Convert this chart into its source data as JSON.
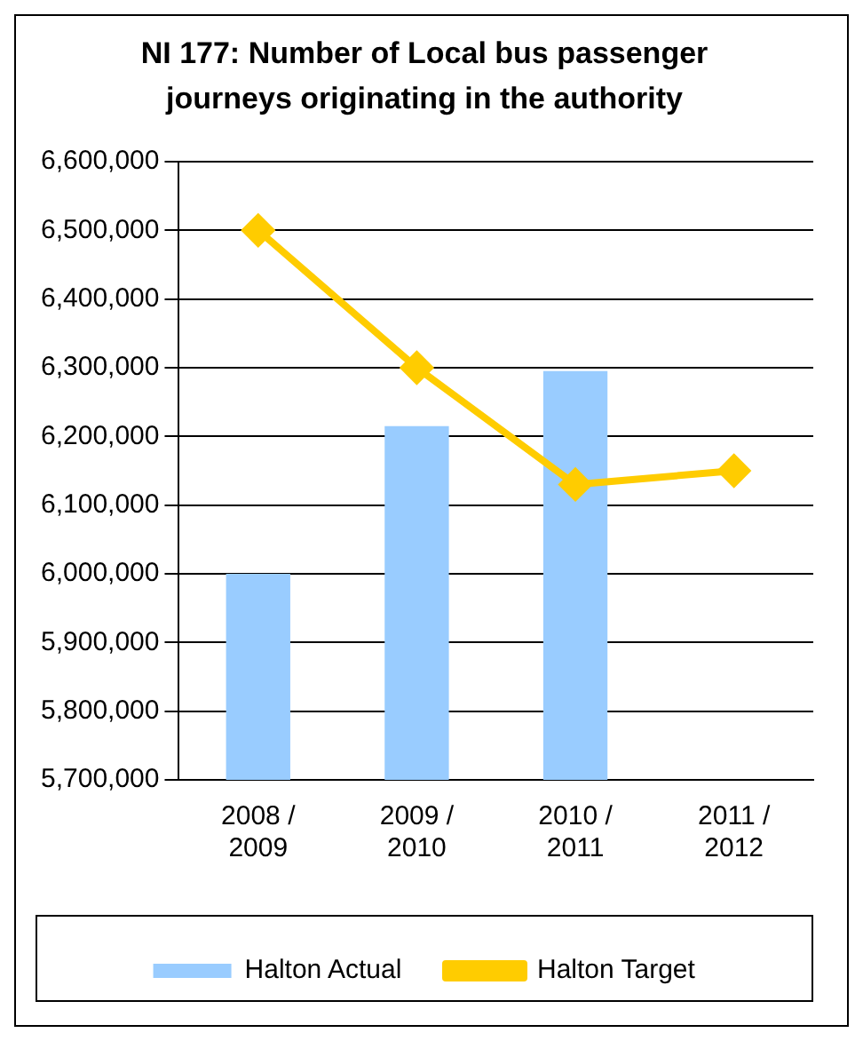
{
  "chart_data": {
    "type": "bar",
    "title": "NI 177: Number of Local bus passenger journeys originating in the authority",
    "categories": [
      "2008 / 2009",
      "2009 / 2010",
      "2010 / 2011",
      "2011 / 2012"
    ],
    "series": [
      {
        "name": "Halton Actual",
        "color": "#99ccff",
        "values": [
          6000000,
          6215000,
          6295000,
          null
        ]
      },
      {
        "name": "Halton Target",
        "type": "line",
        "color": "#ffcc00",
        "marker": "diamond",
        "values": [
          6500000,
          6300000,
          6130000,
          6150000
        ]
      }
    ],
    "ylim": [
      5700000,
      6600000
    ],
    "yticks": [
      {
        "value": 5700000,
        "label": "5,700,000"
      },
      {
        "value": 5800000,
        "label": "5,800,000"
      },
      {
        "value": 5900000,
        "label": "5,900,000"
      },
      {
        "value": 6000000,
        "label": "6,000,000"
      },
      {
        "value": 6100000,
        "label": "6,100,000"
      },
      {
        "value": 6200000,
        "label": "6,200,000"
      },
      {
        "value": 6300000,
        "label": "6,300,000"
      },
      {
        "value": 6400000,
        "label": "6,400,000"
      },
      {
        "value": 6500000,
        "label": "6,500,000"
      },
      {
        "value": 6600000,
        "label": "6,600,000"
      }
    ],
    "grid": "y",
    "legend": "bottom"
  }
}
